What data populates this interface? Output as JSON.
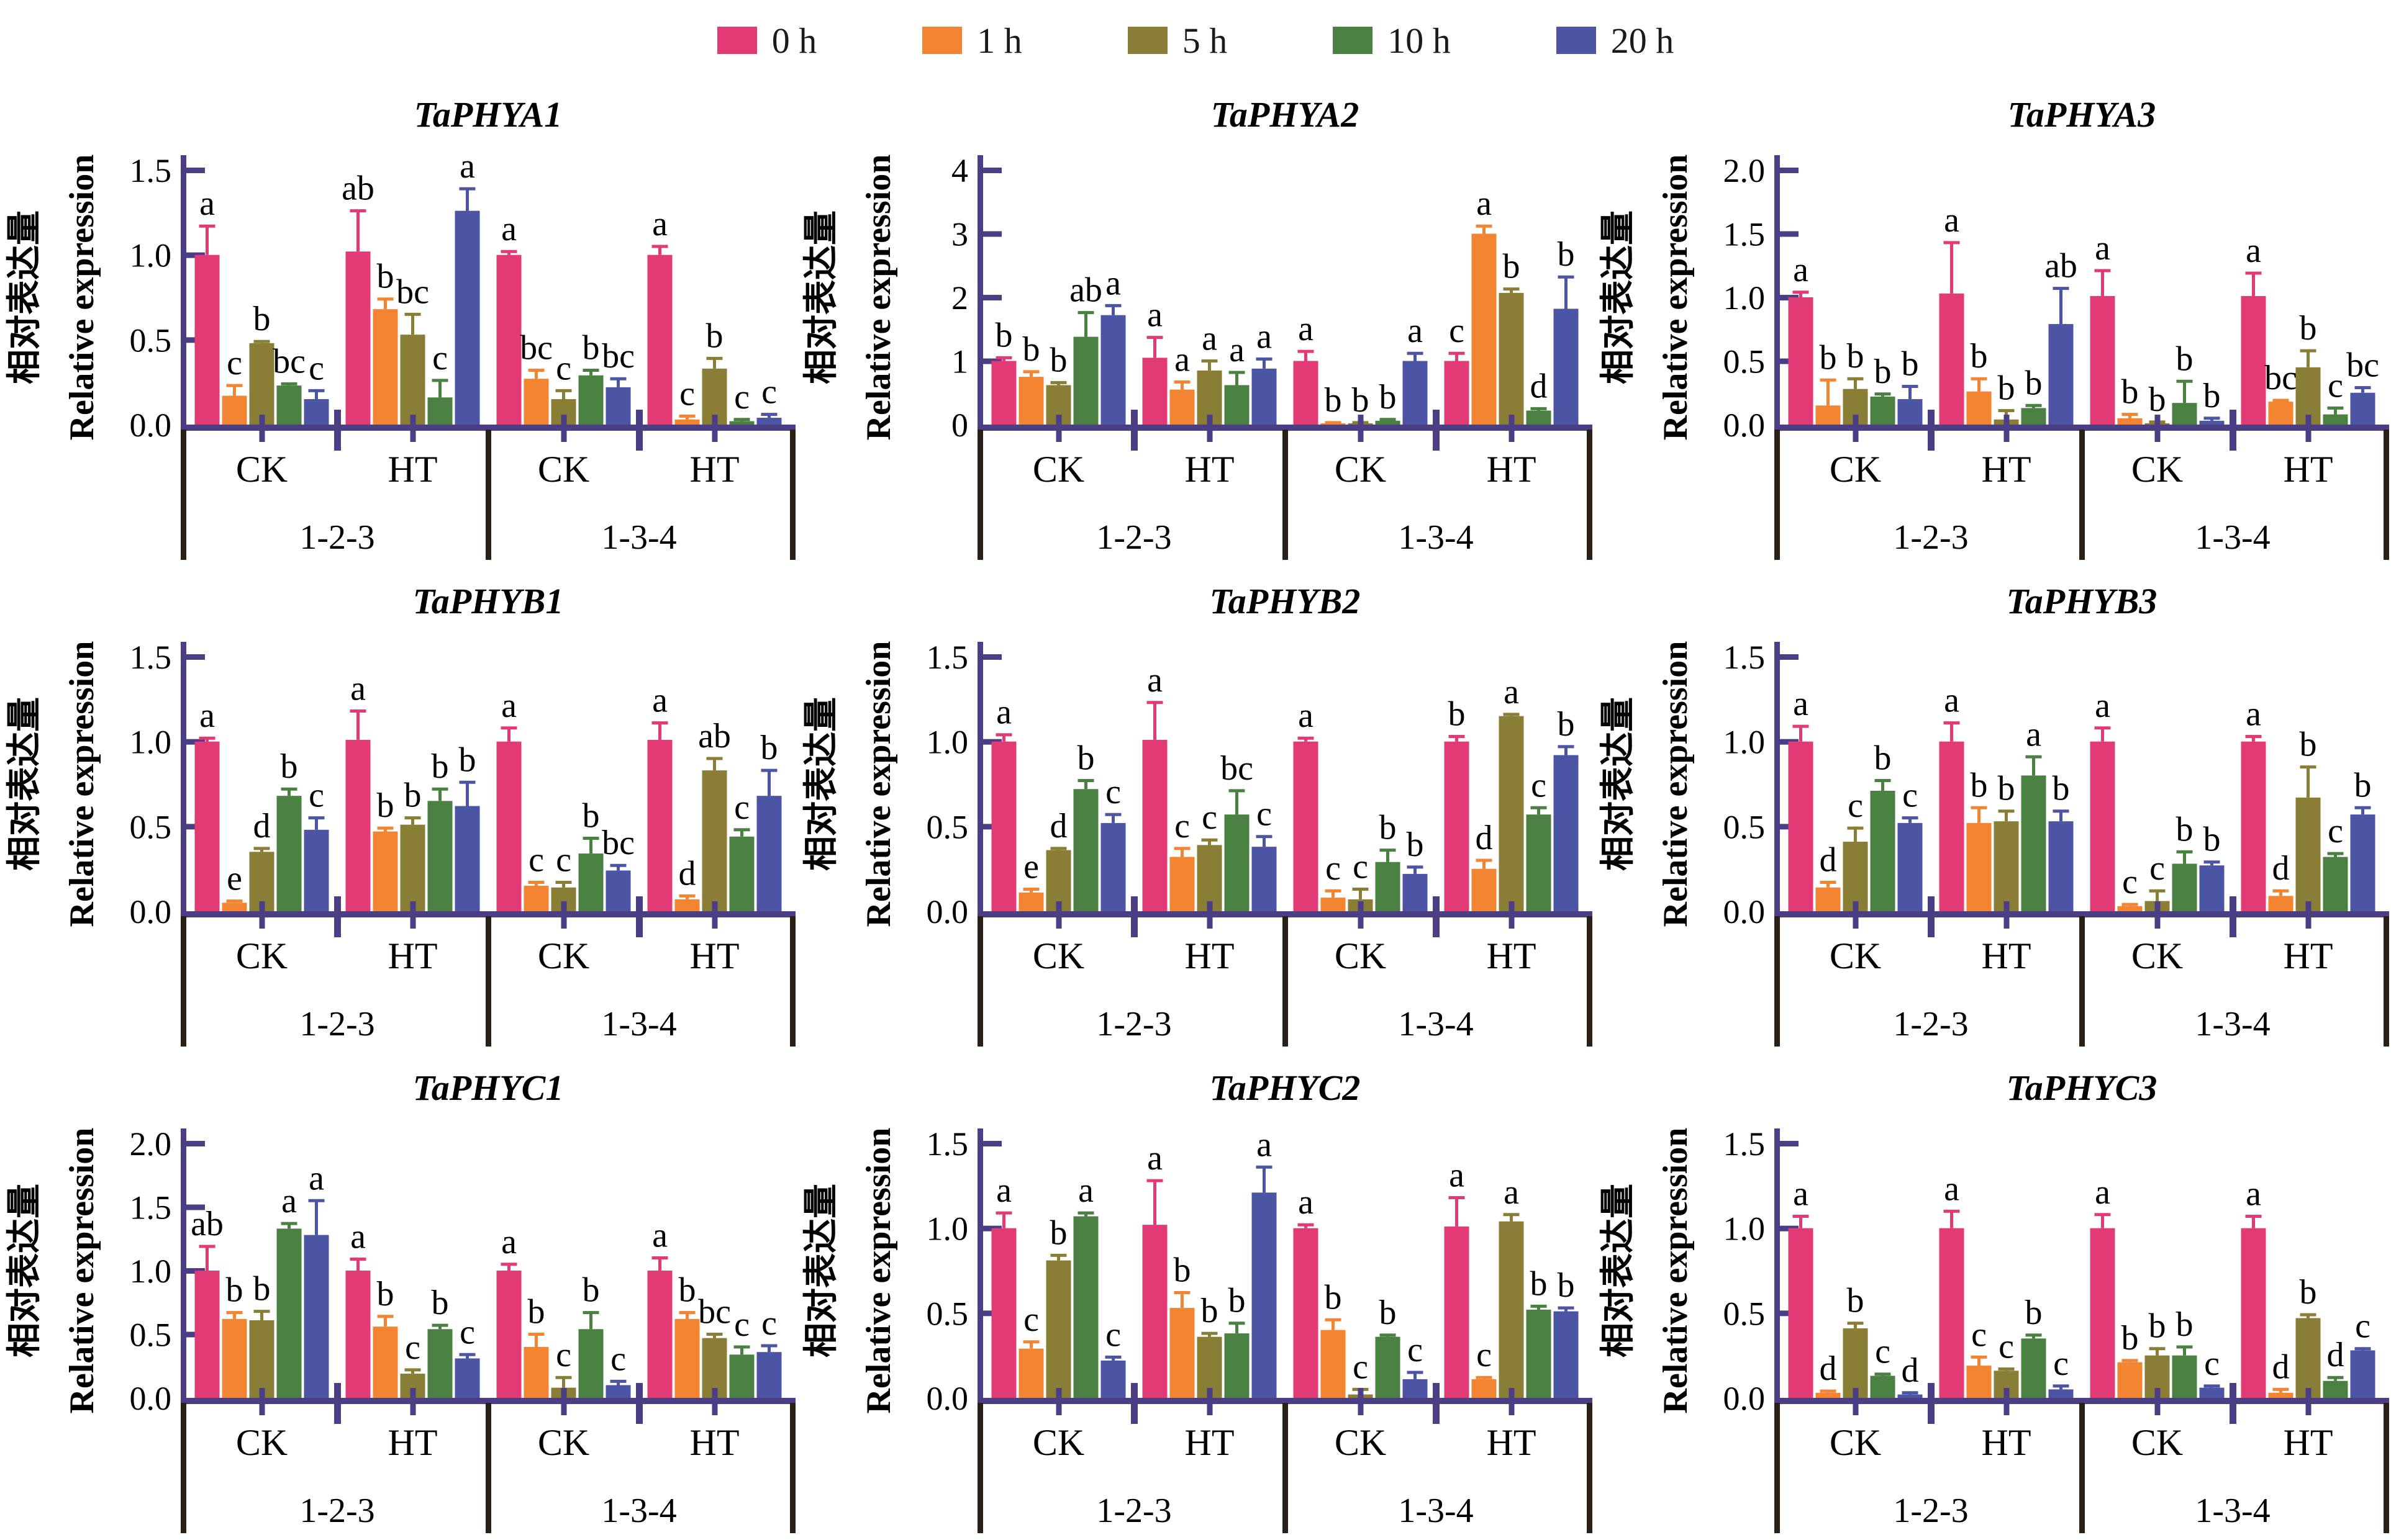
{
  "legend": {
    "items": [
      {
        "label": "0 h",
        "color": "#E23A75"
      },
      {
        "label": "1 h",
        "color": "#F28432"
      },
      {
        "label": "5 h",
        "color": "#8A7D35"
      },
      {
        "label": "10 h",
        "color": "#4A8142"
      },
      {
        "label": "20 h",
        "color": "#4C55A3"
      }
    ]
  },
  "colors": {
    "axis": "#4B3E85",
    "divider": "#2B2018",
    "letter": "#000000"
  },
  "axis_labels": {
    "zh": "相对表达量",
    "en": "Relative expression"
  },
  "group_labels": [
    "CK",
    "HT"
  ],
  "section_labels": [
    "1-2-3",
    "1-3-4"
  ],
  "series_labels": [
    "0 h",
    "1 h",
    "5 h",
    "10 h",
    "20 h"
  ],
  "chart_data": [
    {
      "type": "bar",
      "title": "TaPHYA1",
      "ylabel": "Relative expression",
      "ylim": [
        0,
        1.5
      ],
      "yticks": [
        "0.0",
        "0.5",
        "1.0",
        "1.5"
      ],
      "ytick_values": [
        0,
        0.5,
        1.0,
        1.5
      ],
      "groups": [
        {
          "section": "1-2-3",
          "treatment": "CK",
          "values": [
            1.0,
            0.17,
            0.48,
            0.23,
            0.15
          ],
          "errors": [
            0.17,
            0.06,
            0.01,
            0.01,
            0.05
          ],
          "letters": [
            "a",
            "c",
            "b",
            "bc",
            "c"
          ]
        },
        {
          "section": "1-2-3",
          "treatment": "HT",
          "values": [
            1.02,
            0.68,
            0.53,
            0.16,
            1.26
          ],
          "errors": [
            0.24,
            0.06,
            0.12,
            0.1,
            0.13
          ],
          "letters": [
            "ab",
            "b",
            "bc",
            "c",
            "a"
          ]
        },
        {
          "section": "1-3-4",
          "treatment": "CK",
          "values": [
            1.0,
            0.27,
            0.15,
            0.29,
            0.22
          ],
          "errors": [
            0.02,
            0.05,
            0.05,
            0.03,
            0.05
          ],
          "letters": [
            "a",
            "bc",
            "c",
            "b",
            "bc"
          ]
        },
        {
          "section": "1-3-4",
          "treatment": "HT",
          "values": [
            1.0,
            0.03,
            0.33,
            0.02,
            0.04
          ],
          "errors": [
            0.05,
            0.02,
            0.06,
            0.01,
            0.02
          ],
          "letters": [
            "a",
            "c",
            "b",
            "c",
            "c"
          ]
        }
      ]
    },
    {
      "type": "bar",
      "title": "TaPHYA2",
      "ylabel": "Relative expression",
      "ylim": [
        0,
        4
      ],
      "yticks": [
        "0",
        "1",
        "2",
        "3",
        "4"
      ],
      "ytick_values": [
        0,
        1,
        2,
        3,
        4
      ],
      "groups": [
        {
          "section": "1-2-3",
          "treatment": "CK",
          "values": [
            1.0,
            0.75,
            0.62,
            1.38,
            1.72
          ],
          "errors": [
            0.05,
            0.08,
            0.04,
            0.38,
            0.15
          ],
          "letters": [
            "b",
            "b",
            "b",
            "ab",
            "a"
          ]
        },
        {
          "section": "1-2-3",
          "treatment": "HT",
          "values": [
            1.05,
            0.55,
            0.85,
            0.62,
            0.88
          ],
          "errors": [
            0.32,
            0.12,
            0.15,
            0.2,
            0.15
          ],
          "letters": [
            "a",
            "a",
            "a",
            "a",
            "a"
          ]
        },
        {
          "section": "1-3-4",
          "treatment": "CK",
          "values": [
            1.0,
            0.02,
            0.02,
            0.06,
            1.0
          ],
          "errors": [
            0.15,
            0.01,
            0.01,
            0.02,
            0.12
          ],
          "letters": [
            "a",
            "b",
            "b",
            "b",
            "a"
          ]
        },
        {
          "section": "1-3-4",
          "treatment": "HT",
          "values": [
            1.0,
            3.0,
            2.07,
            0.22,
            1.82
          ],
          "errors": [
            0.12,
            0.12,
            0.06,
            0.03,
            0.5
          ],
          "letters": [
            "c",
            "a",
            "b",
            "d",
            "b"
          ]
        }
      ]
    },
    {
      "type": "bar",
      "title": "TaPHYA3",
      "ylabel": "Relative expression",
      "ylim": [
        0,
        2.0
      ],
      "yticks": [
        "0.0",
        "0.5",
        "1.0",
        "1.5",
        "2.0"
      ],
      "ytick_values": [
        0,
        0.5,
        1.0,
        1.5,
        2.0
      ],
      "groups": [
        {
          "section": "1-2-3",
          "treatment": "CK",
          "values": [
            1.0,
            0.15,
            0.28,
            0.22,
            0.2
          ],
          "errors": [
            0.04,
            0.2,
            0.08,
            0.02,
            0.1
          ],
          "letters": [
            "a",
            "b",
            "b",
            "b",
            "b"
          ]
        },
        {
          "section": "1-2-3",
          "treatment": "HT",
          "values": [
            1.03,
            0.26,
            0.04,
            0.13,
            0.79
          ],
          "errors": [
            0.4,
            0.1,
            0.07,
            0.02,
            0.28
          ],
          "letters": [
            "a",
            "b",
            "b",
            "b",
            "ab"
          ]
        },
        {
          "section": "1-3-4",
          "treatment": "CK",
          "values": [
            1.01,
            0.05,
            0.01,
            0.17,
            0.03
          ],
          "errors": [
            0.2,
            0.03,
            0.01,
            0.17,
            0.02
          ],
          "letters": [
            "a",
            "b",
            "b",
            "b",
            "b"
          ]
        },
        {
          "section": "1-3-4",
          "treatment": "HT",
          "values": [
            1.01,
            0.18,
            0.45,
            0.08,
            0.25
          ],
          "errors": [
            0.18,
            0.01,
            0.13,
            0.05,
            0.04
          ],
          "letters": [
            "a",
            "bc",
            "b",
            "c",
            "bc"
          ]
        }
      ]
    },
    {
      "type": "bar",
      "title": "TaPHYB1",
      "ylabel": "Relative expression",
      "ylim": [
        0,
        1.5
      ],
      "yticks": [
        "0.0",
        "0.5",
        "1.0",
        "1.5"
      ],
      "ytick_values": [
        0,
        0.5,
        1.0,
        1.5
      ],
      "groups": [
        {
          "section": "1-2-3",
          "treatment": "CK",
          "values": [
            1.0,
            0.05,
            0.35,
            0.68,
            0.48
          ],
          "errors": [
            0.02,
            0.01,
            0.02,
            0.04,
            0.07
          ],
          "letters": [
            "a",
            "e",
            "d",
            "b",
            "c"
          ]
        },
        {
          "section": "1-2-3",
          "treatment": "HT",
          "values": [
            1.01,
            0.47,
            0.51,
            0.65,
            0.62
          ],
          "errors": [
            0.17,
            0.02,
            0.04,
            0.07,
            0.14
          ],
          "letters": [
            "a",
            "b",
            "b",
            "b",
            "b"
          ]
        },
        {
          "section": "1-3-4",
          "treatment": "CK",
          "values": [
            1.0,
            0.15,
            0.14,
            0.34,
            0.24
          ],
          "errors": [
            0.08,
            0.02,
            0.03,
            0.09,
            0.03
          ],
          "letters": [
            "a",
            "c",
            "c",
            "b",
            "bc"
          ]
        },
        {
          "section": "1-3-4",
          "treatment": "HT",
          "values": [
            1.01,
            0.07,
            0.83,
            0.44,
            0.68
          ],
          "errors": [
            0.1,
            0.02,
            0.07,
            0.04,
            0.15
          ],
          "letters": [
            "a",
            "d",
            "ab",
            "c",
            "b"
          ]
        }
      ]
    },
    {
      "type": "bar",
      "title": "TaPHYB2",
      "ylabel": "Relative expression",
      "ylim": [
        0,
        1.5
      ],
      "yticks": [
        "0.0",
        "0.5",
        "1.0",
        "1.5"
      ],
      "ytick_values": [
        0,
        0.5,
        1.0,
        1.5
      ],
      "groups": [
        {
          "section": "1-2-3",
          "treatment": "CK",
          "values": [
            1.0,
            0.11,
            0.36,
            0.72,
            0.52
          ],
          "errors": [
            0.04,
            0.02,
            0.01,
            0.05,
            0.05
          ],
          "letters": [
            "a",
            "e",
            "d",
            "b",
            "c"
          ]
        },
        {
          "section": "1-2-3",
          "treatment": "HT",
          "values": [
            1.01,
            0.32,
            0.39,
            0.57,
            0.38
          ],
          "errors": [
            0.22,
            0.05,
            0.03,
            0.14,
            0.06
          ],
          "letters": [
            "a",
            "c",
            "c",
            "bc",
            "c"
          ]
        },
        {
          "section": "1-3-4",
          "treatment": "CK",
          "values": [
            1.0,
            0.08,
            0.07,
            0.29,
            0.22
          ],
          "errors": [
            0.02,
            0.04,
            0.06,
            0.07,
            0.04
          ],
          "letters": [
            "a",
            "c",
            "c",
            "b",
            "b"
          ]
        },
        {
          "section": "1-3-4",
          "treatment": "HT",
          "values": [
            1.0,
            0.25,
            1.15,
            0.57,
            0.92
          ],
          "errors": [
            0.03,
            0.05,
            0.01,
            0.04,
            0.05
          ],
          "letters": [
            "b",
            "d",
            "a",
            "c",
            "b"
          ]
        }
      ]
    },
    {
      "type": "bar",
      "title": "TaPHYB3",
      "ylabel": "Relative expression",
      "ylim": [
        0,
        1.5
      ],
      "yticks": [
        "0.0",
        "0.5",
        "1.0",
        "1.5"
      ],
      "ytick_values": [
        0,
        0.5,
        1.0,
        1.5
      ],
      "groups": [
        {
          "section": "1-2-3",
          "treatment": "CK",
          "values": [
            1.0,
            0.14,
            0.41,
            0.71,
            0.52
          ],
          "errors": [
            0.09,
            0.03,
            0.08,
            0.06,
            0.03
          ],
          "letters": [
            "a",
            "d",
            "c",
            "b",
            "c"
          ]
        },
        {
          "section": "1-2-3",
          "treatment": "HT",
          "values": [
            1.0,
            0.52,
            0.53,
            0.8,
            0.53
          ],
          "errors": [
            0.11,
            0.09,
            0.06,
            0.11,
            0.06
          ],
          "letters": [
            "a",
            "b",
            "b",
            "a",
            "b"
          ]
        },
        {
          "section": "1-3-4",
          "treatment": "CK",
          "values": [
            1.0,
            0.03,
            0.06,
            0.28,
            0.27
          ],
          "errors": [
            0.08,
            0.01,
            0.06,
            0.07,
            0.02
          ],
          "letters": [
            "a",
            "c",
            "c",
            "b",
            "b"
          ]
        },
        {
          "section": "1-3-4",
          "treatment": "HT",
          "values": [
            1.0,
            0.09,
            0.67,
            0.32,
            0.57
          ],
          "errors": [
            0.03,
            0.03,
            0.18,
            0.02,
            0.04
          ],
          "letters": [
            "a",
            "d",
            "b",
            "c",
            "b"
          ]
        }
      ]
    },
    {
      "type": "bar",
      "title": "TaPHYC1",
      "ylabel": "Relative expression",
      "ylim": [
        0,
        2.0
      ],
      "yticks": [
        "0.0",
        "0.5",
        "1.0",
        "1.5",
        "2.0"
      ],
      "ytick_values": [
        0,
        0.5,
        1.0,
        1.5,
        2.0
      ],
      "groups": [
        {
          "section": "1-2-3",
          "treatment": "CK",
          "values": [
            1.0,
            0.62,
            0.61,
            1.33,
            1.28
          ],
          "errors": [
            0.19,
            0.05,
            0.07,
            0.04,
            0.27
          ],
          "letters": [
            "ab",
            "b",
            "b",
            "a",
            "a"
          ]
        },
        {
          "section": "1-2-3",
          "treatment": "HT",
          "values": [
            1.0,
            0.56,
            0.19,
            0.54,
            0.31
          ],
          "errors": [
            0.09,
            0.08,
            0.03,
            0.03,
            0.03
          ],
          "letters": [
            "a",
            "b",
            "c",
            "b",
            "c"
          ]
        },
        {
          "section": "1-3-4",
          "treatment": "CK",
          "values": [
            1.0,
            0.4,
            0.08,
            0.54,
            0.1
          ],
          "errors": [
            0.05,
            0.1,
            0.08,
            0.13,
            0.03
          ],
          "letters": [
            "a",
            "b",
            "c",
            "b",
            "c"
          ]
        },
        {
          "section": "1-3-4",
          "treatment": "HT",
          "values": [
            1.0,
            0.62,
            0.47,
            0.34,
            0.36
          ],
          "errors": [
            0.1,
            0.05,
            0.03,
            0.06,
            0.05
          ],
          "letters": [
            "a",
            "b",
            "bc",
            "c",
            "c"
          ]
        }
      ]
    },
    {
      "type": "bar",
      "title": "TaPHYC2",
      "ylabel": "Relative expression",
      "ylim": [
        0,
        1.5
      ],
      "yticks": [
        "0.0",
        "0.5",
        "1.0",
        "1.5"
      ],
      "ytick_values": [
        0,
        0.5,
        1.0,
        1.5
      ],
      "groups": [
        {
          "section": "1-2-3",
          "treatment": "CK",
          "values": [
            1.0,
            0.29,
            0.81,
            1.07,
            0.22
          ],
          "errors": [
            0.09,
            0.04,
            0.03,
            0.02,
            0.02
          ],
          "letters": [
            "a",
            "c",
            "b",
            "a",
            "c"
          ]
        },
        {
          "section": "1-2-3",
          "treatment": "HT",
          "values": [
            1.02,
            0.53,
            0.36,
            0.38,
            1.21
          ],
          "errors": [
            0.26,
            0.09,
            0.02,
            0.06,
            0.15
          ],
          "letters": [
            "a",
            "b",
            "b",
            "b",
            "a"
          ]
        },
        {
          "section": "1-3-4",
          "treatment": "CK",
          "values": [
            1.0,
            0.4,
            0.02,
            0.36,
            0.11
          ],
          "errors": [
            0.02,
            0.06,
            0.03,
            0.01,
            0.04
          ],
          "letters": [
            "a",
            "b",
            "c",
            "b",
            "c"
          ]
        },
        {
          "section": "1-3-4",
          "treatment": "HT",
          "values": [
            1.01,
            0.11,
            1.04,
            0.52,
            0.51
          ],
          "errors": [
            0.17,
            0.01,
            0.04,
            0.02,
            0.02
          ],
          "letters": [
            "a",
            "c",
            "a",
            "b",
            "b"
          ]
        }
      ]
    },
    {
      "type": "bar",
      "title": "TaPHYC3",
      "ylabel": "Relative expression",
      "ylim": [
        0,
        1.5
      ],
      "yticks": [
        "0.0",
        "0.5",
        "1.0",
        "1.5"
      ],
      "ytick_values": [
        0,
        0.5,
        1.0,
        1.5
      ],
      "groups": [
        {
          "section": "1-2-3",
          "treatment": "CK",
          "values": [
            1.0,
            0.03,
            0.41,
            0.13,
            0.02
          ],
          "errors": [
            0.07,
            0.01,
            0.03,
            0.01,
            0.01
          ],
          "letters": [
            "a",
            "d",
            "b",
            "c",
            "d"
          ]
        },
        {
          "section": "1-2-3",
          "treatment": "HT",
          "values": [
            1.0,
            0.19,
            0.16,
            0.35,
            0.05
          ],
          "errors": [
            0.1,
            0.05,
            0.01,
            0.02,
            0.02
          ],
          "letters": [
            "a",
            "c",
            "c",
            "b",
            "c"
          ]
        },
        {
          "section": "1-3-4",
          "treatment": "CK",
          "values": [
            1.0,
            0.21,
            0.25,
            0.25,
            0.06
          ],
          "errors": [
            0.08,
            0.01,
            0.04,
            0.05,
            0.01
          ],
          "letters": [
            "a",
            "b",
            "b",
            "b",
            "c"
          ]
        },
        {
          "section": "1-3-4",
          "treatment": "HT",
          "values": [
            1.0,
            0.03,
            0.47,
            0.1,
            0.28
          ],
          "errors": [
            0.07,
            0.02,
            0.02,
            0.02,
            0.01
          ],
          "letters": [
            "a",
            "d",
            "b",
            "d",
            "c"
          ]
        }
      ]
    }
  ]
}
